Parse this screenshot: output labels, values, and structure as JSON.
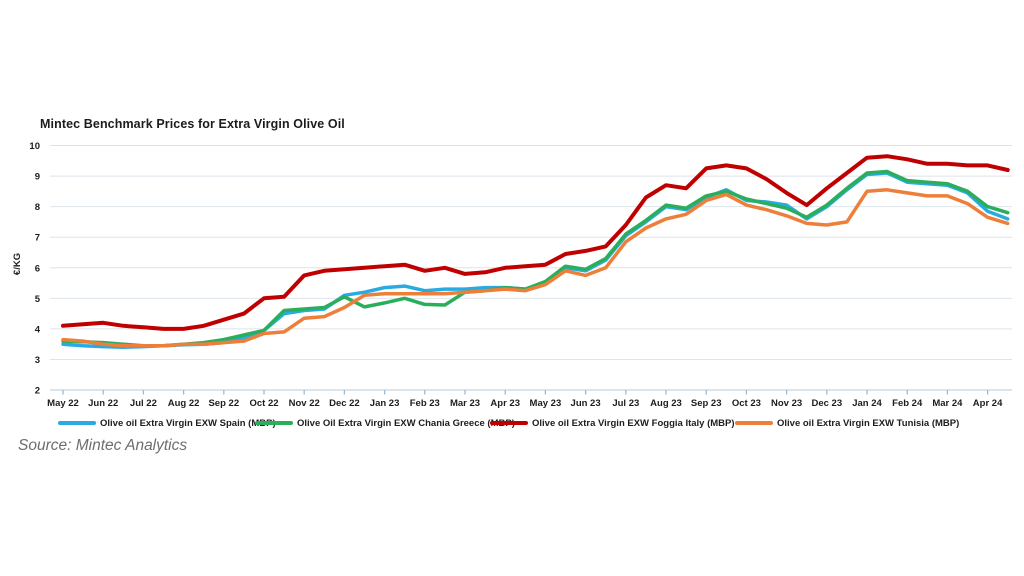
{
  "title": "Mintec Benchmark Prices for Extra Virgin Olive Oil",
  "source_note": "Source: Mintec Analytics",
  "chart_data": {
    "type": "line",
    "title": "Mintec Benchmark Prices for Extra Virgin Olive Oil",
    "xlabel": "",
    "ylabel": "€/KG",
    "ylim": [
      2,
      10
    ],
    "yticks": [
      2,
      3,
      4,
      5,
      6,
      7,
      8,
      9,
      10
    ],
    "grid": true,
    "legend_position": "bottom",
    "points_per_month": 2,
    "x_tick_labels": [
      "May 22",
      "Jun 22",
      "Jul 22",
      "Aug 22",
      "Sep 22",
      "Oct 22",
      "Nov 22",
      "Dec 22",
      "Jan 23",
      "Feb 23",
      "Mar 23",
      "Apr 23",
      "May 23",
      "Jun 23",
      "Jul 23",
      "Aug 23",
      "Sep 23",
      "Oct 23",
      "Nov 23",
      "Dec 23",
      "Jan 24",
      "Feb 24",
      "Mar 24",
      "Apr 24"
    ],
    "series": [
      {
        "name": "Olive oil Extra Virgin EXW Spain (MBP)",
        "color": "#29abe2",
        "values": [
          3.5,
          3.45,
          3.42,
          3.4,
          3.42,
          3.45,
          3.48,
          3.5,
          3.55,
          3.7,
          3.95,
          4.5,
          4.6,
          4.65,
          5.1,
          5.2,
          5.35,
          5.4,
          5.25,
          5.3,
          5.3,
          5.35,
          5.35,
          5.3,
          5.5,
          6.0,
          5.9,
          6.25,
          7.05,
          7.5,
          8.0,
          7.9,
          8.3,
          8.55,
          8.2,
          8.15,
          8.05,
          7.6,
          8.0,
          8.55,
          9.05,
          9.1,
          8.8,
          8.75,
          8.7,
          8.45,
          7.85,
          7.6
        ]
      },
      {
        "name": "Olive Oil Extra Virgin EXW Chania Greece (MBP)",
        "color": "#2bae5c",
        "values": [
          3.6,
          3.58,
          3.55,
          3.5,
          3.45,
          3.45,
          3.5,
          3.55,
          3.65,
          3.8,
          3.95,
          4.6,
          4.65,
          4.7,
          5.05,
          4.72,
          4.85,
          5.0,
          4.8,
          4.78,
          5.2,
          5.25,
          5.35,
          5.3,
          5.55,
          6.05,
          5.95,
          6.3,
          7.1,
          7.55,
          8.05,
          7.95,
          8.35,
          8.5,
          8.25,
          8.1,
          7.95,
          7.65,
          8.05,
          8.6,
          9.1,
          9.15,
          8.85,
          8.8,
          8.75,
          8.5,
          8.0,
          7.8
        ]
      },
      {
        "name": "Olive oil Extra Virgin EXW Foggia Italy (MBP)",
        "color": "#c00000",
        "values": [
          4.1,
          4.15,
          4.2,
          4.1,
          4.05,
          4.0,
          4.0,
          4.1,
          4.3,
          4.5,
          5.0,
          5.05,
          5.75,
          5.9,
          5.95,
          6.0,
          6.05,
          6.1,
          5.9,
          6.0,
          5.8,
          5.85,
          6.0,
          6.05,
          6.1,
          6.45,
          6.55,
          6.7,
          7.4,
          8.3,
          8.7,
          8.6,
          9.25,
          9.35,
          9.25,
          8.9,
          8.45,
          8.05,
          8.6,
          9.1,
          9.6,
          9.65,
          9.55,
          9.4,
          9.4,
          9.35,
          9.35,
          9.2
        ]
      },
      {
        "name": "Olive oil Extra Virgin EXW Tunisia (MBP)",
        "color": "#ee7f3b",
        "values": [
          3.65,
          3.6,
          3.5,
          3.45,
          3.45,
          3.45,
          3.5,
          3.5,
          3.55,
          3.6,
          3.85,
          3.9,
          4.35,
          4.4,
          4.7,
          5.1,
          5.15,
          5.15,
          5.15,
          5.15,
          5.2,
          5.25,
          5.3,
          5.25,
          5.45,
          5.9,
          5.75,
          6.0,
          6.85,
          7.3,
          7.6,
          7.75,
          8.2,
          8.4,
          8.05,
          7.9,
          7.7,
          7.45,
          7.4,
          7.5,
          8.5,
          8.55,
          8.45,
          8.35,
          8.35,
          8.1,
          7.65,
          7.45
        ]
      }
    ]
  }
}
